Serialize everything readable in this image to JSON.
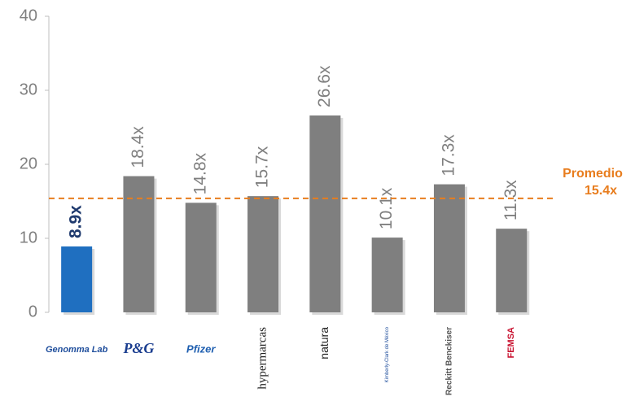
{
  "chart_data": {
    "type": "bar",
    "categories": [
      "Genomma Lab",
      "P&G",
      "Pfizer",
      "hypermarcas",
      "natura",
      "Kimberly-Clark de México",
      "Reckitt Benckiser",
      "FEMSA"
    ],
    "values": [
      8.9,
      18.4,
      14.8,
      15.7,
      26.6,
      10.1,
      17.3,
      11.3
    ],
    "value_labels": [
      "8.9x",
      "18.4x",
      "14.8x",
      "15.7x",
      "26.6x",
      "10.1x",
      "17.3x",
      "11.3x"
    ],
    "colors": [
      "#1f6fc0",
      "#7f7f7f",
      "#7f7f7f",
      "#7f7f7f",
      "#7f7f7f",
      "#7f7f7f",
      "#7f7f7f",
      "#7f7f7f"
    ],
    "label_colors": [
      "#1f3a6e",
      "#7f7f7f",
      "#7f7f7f",
      "#7f7f7f",
      "#7f7f7f",
      "#7f7f7f",
      "#7f7f7f",
      "#7f7f7f"
    ],
    "ylim": [
      0,
      40
    ],
    "yticks": [
      0,
      10,
      20,
      30,
      40
    ],
    "grid": false,
    "reference_line": {
      "text": "Promedio",
      "value": 15.4,
      "value_label": "15.4x",
      "color": "#e87d1e"
    }
  }
}
